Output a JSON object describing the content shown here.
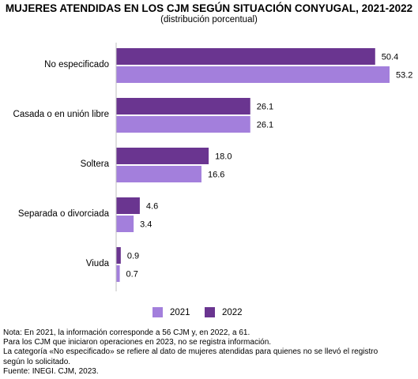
{
  "header": {
    "title": "MUJERES ATENDIDAS EN LOS CJM SEGÚN SITUACIÓN CONYUGAL, 2021-2022",
    "subtitle": "(distribución porcentual)"
  },
  "colors": {
    "2021": "#a37fdc",
    "2022": "#6a3590",
    "axis": "#bfbfbf"
  },
  "chart_data": {
    "type": "bar",
    "orientation": "horizontal",
    "categories": [
      "No especificado",
      "Casada o en unión libre",
      "Soltera",
      "Separada o divorciada",
      "Viuda"
    ],
    "series": [
      {
        "name": "2022",
        "values": [
          50.4,
          26.1,
          18.0,
          4.6,
          0.9
        ]
      },
      {
        "name": "2021",
        "values": [
          53.2,
          26.1,
          16.6,
          3.4,
          0.7
        ]
      }
    ],
    "value_labels": {
      "2022": [
        "50.4",
        "26.1",
        "18.0",
        "4.6",
        "0.9"
      ],
      "2021": [
        "53.2",
        "26.1",
        "16.6",
        "3.4",
        "0.7"
      ]
    },
    "xlim": [
      0,
      53.2
    ],
    "grid": false,
    "legend_position": "bottom"
  },
  "legend": {
    "items": [
      {
        "label": "2021"
      },
      {
        "label": "2022"
      }
    ]
  },
  "notes": [
    "Nota: En 2021, la información corresponde a 56 CJM y, en 2022, a 61.",
    "Para los CJM que iniciaron operaciones en 2023, no se registra información.",
    "La categoría «No especificado» se refiere al dato de mujeres atendidas para quienes no se llevó el registro",
    "según lo solicitado.",
    "Fuente: INEGI. CJM, 2023."
  ]
}
